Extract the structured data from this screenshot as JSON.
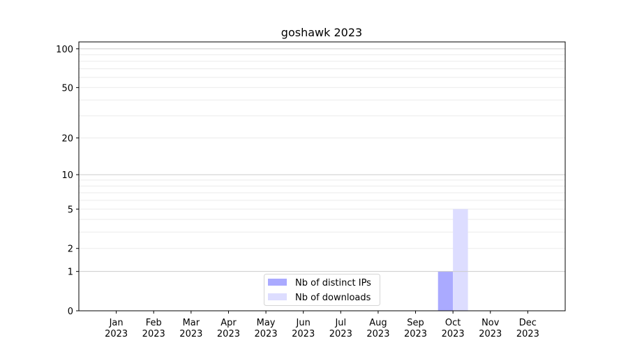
{
  "chart_data": {
    "type": "bar",
    "title": "goshawk 2023",
    "xlabel": "",
    "ylabel": "",
    "yscale": "symlog (log10(1+y))",
    "ylim": [
      0,
      113
    ],
    "yticks": [
      0,
      1,
      2,
      5,
      10,
      20,
      50,
      100
    ],
    "categories": [
      "Jan\n2023",
      "Feb\n2023",
      "Mar\n2023",
      "Apr\n2023",
      "May\n2023",
      "Jun\n2023",
      "Jul\n2023",
      "Aug\n2023",
      "Sep\n2023",
      "Oct\n2023",
      "Nov\n2023",
      "Dec\n2023"
    ],
    "series": [
      {
        "name": "Nb of distinct IPs",
        "color": "#aaaaff",
        "values": [
          0,
          0,
          0,
          0,
          0,
          0,
          0,
          0,
          0,
          1,
          0,
          0
        ]
      },
      {
        "name": "Nb of downloads",
        "color": "#ddddff",
        "values": [
          0,
          0,
          0,
          0,
          0,
          0,
          0,
          0,
          0,
          5,
          0,
          0
        ]
      }
    ],
    "grid": "horizontal, major and minor",
    "legend_position": "lower center"
  }
}
